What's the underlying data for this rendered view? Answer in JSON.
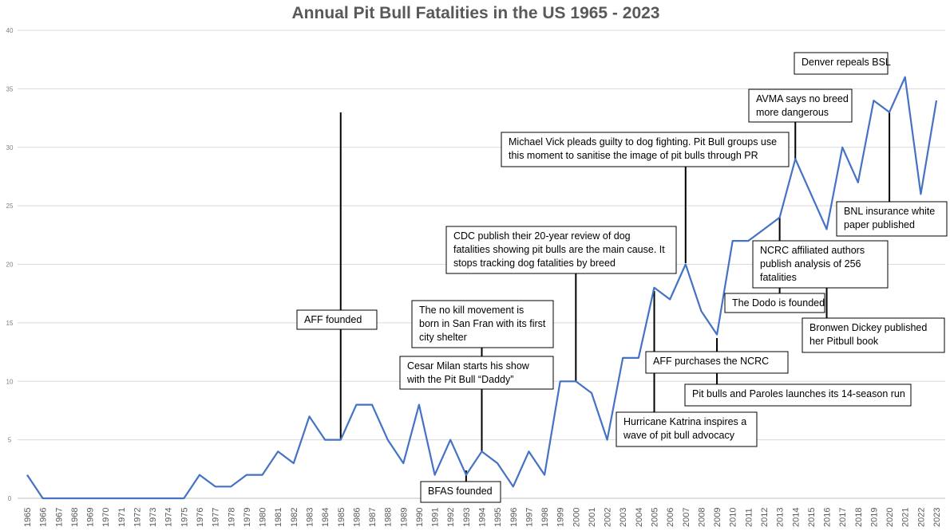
{
  "chart_data": {
    "type": "line",
    "title": "Annual Pit Bull Fatalities in the US 1965 - 2023",
    "xlabel": "",
    "ylabel": "",
    "ylim": [
      0,
      40
    ],
    "yticks": [
      0,
      5,
      10,
      15,
      20,
      25,
      30,
      35,
      40
    ],
    "grid": true,
    "legend": "none",
    "series_color": "#4472c4",
    "categories": [
      "1965",
      "1966",
      "1967",
      "1968",
      "1969",
      "1970",
      "1971",
      "1972",
      "1973",
      "1974",
      "1975",
      "1976",
      "1977",
      "1978",
      "1979",
      "1980",
      "1981",
      "1982",
      "1983",
      "1984",
      "1985",
      "1986",
      "1987",
      "1988",
      "1989",
      "1990",
      "1991",
      "1992",
      "1993",
      "1994",
      "1995",
      "1996",
      "1997",
      "1998",
      "1999",
      "2000",
      "2001",
      "2002",
      "2003",
      "2004",
      "2005",
      "2006",
      "2007",
      "2008",
      "2009",
      "2010",
      "2011",
      "2012",
      "2013",
      "2014",
      "2015",
      "2016",
      "2017",
      "2018",
      "2019",
      "2020",
      "2021",
      "2022",
      "2023"
    ],
    "values": [
      2,
      0,
      0,
      0,
      0,
      0,
      0,
      0,
      0,
      0,
      0,
      2,
      1,
      1,
      2,
      2,
      4,
      3,
      7,
      5,
      5,
      8,
      8,
      5,
      3,
      8,
      2,
      5,
      2,
      4,
      3,
      1,
      4,
      2,
      10,
      10,
      9,
      5,
      12,
      12,
      18,
      17,
      20,
      16,
      14,
      22,
      22,
      23,
      24,
      29,
      26,
      23,
      30,
      27,
      34,
      33,
      36,
      26,
      34
    ],
    "annotations": [
      {
        "year": "1985",
        "text": [
          "AFF founded"
        ]
      },
      {
        "year": "1993",
        "text": [
          "BFAS founded"
        ]
      },
      {
        "year": "1994",
        "text": [
          "The no kill movement is",
          "born in San Fran with its first",
          "city shelter"
        ]
      },
      {
        "year": "1994",
        "text": [
          "Cesar Milan starts his show",
          "with the Pit Bull “Daddy”"
        ]
      },
      {
        "year": "2000",
        "text": [
          "CDC publish their 20-year review of dog",
          "fatalities showing pit bulls are the main cause. It",
          "stops tracking dog fatalities by breed"
        ]
      },
      {
        "year": "2005",
        "text": [
          "Hurricane Katrina inspires a",
          "wave of pit bull advocacy"
        ]
      },
      {
        "year": "2007",
        "text": [
          "Michael Vick pleads guilty to dog fighting. Pit Bull groups use",
          "this moment to sanitise the image of pit bulls through PR"
        ]
      },
      {
        "year": "2009",
        "text": [
          "AFF purchases the NCRC"
        ]
      },
      {
        "year": "2009",
        "text": [
          "Pit bulls and Paroles launches its 14-season run"
        ]
      },
      {
        "year": "2013",
        "text": [
          "NCRC affiliated authors",
          "publish analysis of 256",
          "fatalities"
        ]
      },
      {
        "year": "2013",
        "text": [
          "The Dodo is founded"
        ]
      },
      {
        "year": "2014",
        "text": [
          "AVMA says no breed",
          "more dangerous"
        ]
      },
      {
        "year": "2014",
        "text": [
          "Denver repeals BSL"
        ]
      },
      {
        "year": "2016",
        "text": [
          "Bronwen Dickey published",
          "her Pitbull book"
        ]
      },
      {
        "year": "2020",
        "text": [
          "BNL insurance white",
          "paper published"
        ]
      }
    ]
  }
}
